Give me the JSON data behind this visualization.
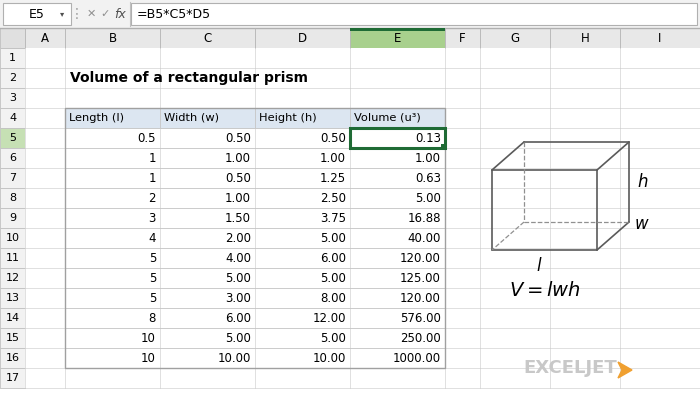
{
  "title": "Volume of a rectangular prism",
  "formula_bar_cell": "E5",
  "formula_bar_text": "=B5*C5*D5",
  "table_headers": [
    "Length (l)",
    "Width (w)",
    "Height (h)",
    "Volume (u³)"
  ],
  "table_data": [
    [
      0.5,
      0.5,
      0.5,
      0.13
    ],
    [
      1,
      1.0,
      1.0,
      1.0
    ],
    [
      1,
      0.5,
      1.25,
      0.63
    ],
    [
      2,
      1.0,
      2.5,
      5.0
    ],
    [
      3,
      1.5,
      3.75,
      16.88
    ],
    [
      4,
      2.0,
      5.0,
      40.0
    ],
    [
      5,
      4.0,
      6.0,
      120.0
    ],
    [
      5,
      5.0,
      5.0,
      125.0
    ],
    [
      5,
      3.0,
      8.0,
      120.0
    ],
    [
      8,
      6.0,
      12.0,
      576.0
    ],
    [
      10,
      5.0,
      5.0,
      250.0
    ],
    [
      10,
      10.0,
      10.0,
      1000.0
    ]
  ],
  "header_bg": "#dce6f1",
  "selected_cell_border": "#1f6b35",
  "grid_color": "#c8c8c8",
  "col_header_e_bg": "#a8d08d",
  "row5_num_bg": "#c6e0b4",
  "background": "#ffffff",
  "formula_bar_bg": "#f2f2f2",
  "sheet_bg": "#ffffff",
  "col_header_bg": "#e8e8e8",
  "row_num_bg": "#f2f2f2"
}
